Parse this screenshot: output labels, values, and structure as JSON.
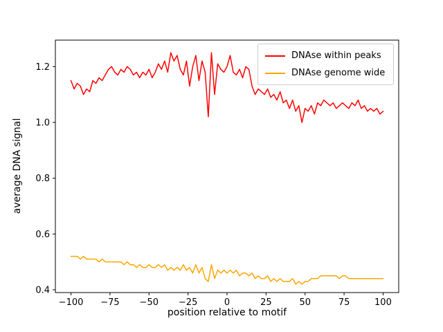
{
  "chart_data": {
    "type": "line",
    "title": "",
    "xlabel": "position relative to motif",
    "ylabel": "average DNA signal",
    "xlim": [
      -110,
      110
    ],
    "ylim": [
      0.39,
      1.295
    ],
    "grid": false,
    "legend_position": "upper right",
    "xticks": [
      -100,
      -75,
      -50,
      -25,
      0,
      25,
      50,
      75,
      100
    ],
    "xtick_labels": [
      "−100",
      "−75",
      "−50",
      "−25",
      "0",
      "25",
      "50",
      "75",
      "100"
    ],
    "yticks": [
      0.4,
      0.6,
      0.8,
      1.0,
      1.2
    ],
    "ytick_labels": [
      "0.4",
      "0.6",
      "0.8",
      "1.0",
      "1.2"
    ],
    "x": [
      -100,
      -98,
      -96,
      -94,
      -92,
      -90,
      -88,
      -86,
      -84,
      -82,
      -80,
      -78,
      -76,
      -74,
      -72,
      -70,
      -68,
      -66,
      -64,
      -62,
      -60,
      -58,
      -56,
      -54,
      -52,
      -50,
      -48,
      -46,
      -44,
      -42,
      -40,
      -38,
      -36,
      -34,
      -32,
      -30,
      -28,
      -26,
      -24,
      -22,
      -20,
      -18,
      -16,
      -14,
      -12,
      -10,
      -8,
      -6,
      -4,
      -2,
      0,
      2,
      4,
      6,
      8,
      10,
      12,
      14,
      16,
      18,
      20,
      22,
      24,
      26,
      28,
      30,
      32,
      34,
      36,
      38,
      40,
      42,
      44,
      46,
      48,
      50,
      52,
      54,
      56,
      58,
      60,
      62,
      64,
      66,
      68,
      70,
      72,
      74,
      76,
      78,
      80,
      82,
      84,
      86,
      88,
      90,
      92,
      94,
      96,
      98,
      100
    ],
    "series": [
      {
        "name": "DNAse within peaks",
        "color": "#ff0000",
        "values": [
          1.15,
          1.12,
          1.14,
          1.13,
          1.1,
          1.12,
          1.11,
          1.15,
          1.14,
          1.16,
          1.15,
          1.17,
          1.19,
          1.2,
          1.18,
          1.17,
          1.19,
          1.18,
          1.2,
          1.19,
          1.17,
          1.18,
          1.16,
          1.18,
          1.17,
          1.19,
          1.16,
          1.18,
          1.21,
          1.19,
          1.22,
          1.18,
          1.25,
          1.22,
          1.24,
          1.19,
          1.17,
          1.22,
          1.13,
          1.2,
          1.24,
          1.15,
          1.22,
          1.18,
          1.02,
          1.25,
          1.1,
          1.21,
          1.19,
          1.18,
          1.2,
          1.24,
          1.18,
          1.17,
          1.19,
          1.16,
          1.2,
          1.19,
          1.13,
          1.1,
          1.12,
          1.11,
          1.1,
          1.12,
          1.09,
          1.1,
          1.08,
          1.11,
          1.07,
          1.08,
          1.05,
          1.08,
          1.04,
          1.06,
          1.0,
          1.05,
          1.04,
          1.06,
          1.03,
          1.07,
          1.06,
          1.08,
          1.07,
          1.06,
          1.07,
          1.05,
          1.06,
          1.07,
          1.06,
          1.05,
          1.07,
          1.06,
          1.08,
          1.05,
          1.06,
          1.04,
          1.05,
          1.04,
          1.05,
          1.03,
          1.04
        ]
      },
      {
        "name": "DNAse genome wide",
        "color": "#ffa500",
        "values": [
          0.52,
          0.52,
          0.52,
          0.51,
          0.52,
          0.51,
          0.51,
          0.51,
          0.51,
          0.5,
          0.51,
          0.5,
          0.5,
          0.5,
          0.5,
          0.5,
          0.5,
          0.49,
          0.5,
          0.49,
          0.49,
          0.48,
          0.49,
          0.48,
          0.48,
          0.49,
          0.48,
          0.48,
          0.49,
          0.48,
          0.49,
          0.47,
          0.48,
          0.47,
          0.48,
          0.47,
          0.49,
          0.47,
          0.48,
          0.46,
          0.49,
          0.46,
          0.48,
          0.44,
          0.43,
          0.49,
          0.44,
          0.47,
          0.46,
          0.47,
          0.46,
          0.47,
          0.46,
          0.47,
          0.45,
          0.46,
          0.46,
          0.45,
          0.46,
          0.44,
          0.45,
          0.44,
          0.44,
          0.45,
          0.43,
          0.44,
          0.43,
          0.44,
          0.43,
          0.43,
          0.43,
          0.44,
          0.42,
          0.43,
          0.42,
          0.43,
          0.43,
          0.44,
          0.44,
          0.44,
          0.45,
          0.45,
          0.45,
          0.45,
          0.45,
          0.45,
          0.44,
          0.45,
          0.45,
          0.44,
          0.44,
          0.44,
          0.44,
          0.44,
          0.44,
          0.44,
          0.44,
          0.44,
          0.44,
          0.44,
          0.44
        ]
      }
    ]
  }
}
